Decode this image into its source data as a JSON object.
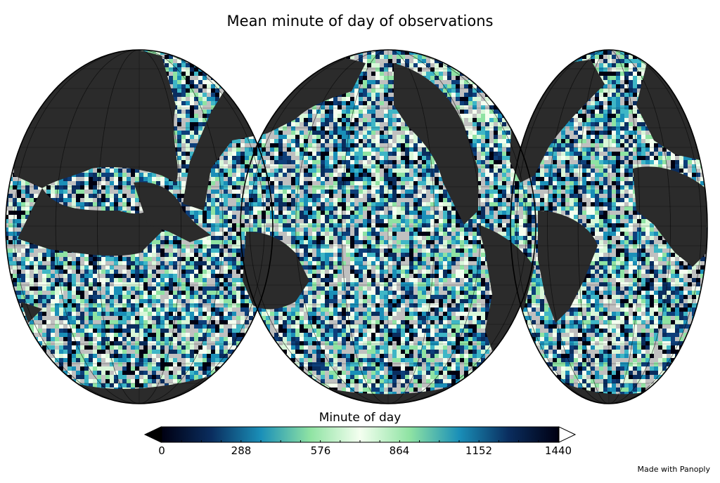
{
  "title": "Mean minute of day of observations",
  "colorbar": {
    "label": "Minute of day",
    "ticks": [
      "0",
      "288",
      "576",
      "864",
      "1152",
      "1440"
    ],
    "min": 0,
    "max": 1440,
    "under_color": "#000000",
    "over_color": "#ffffff",
    "stops": [
      "#000012",
      "#0a2d5e",
      "#1a8fb8",
      "#8fe3a3",
      "#f4fff0",
      "#8fe3a3",
      "#1a8fb8",
      "#0a2d5e",
      "#000012"
    ]
  },
  "map": {
    "projection": "interrupted Goode homolosine",
    "land_color": "#2b2b2b",
    "no_data_color": "#c0c0c0",
    "grid": true
  },
  "credit": "Made with Panoply"
}
